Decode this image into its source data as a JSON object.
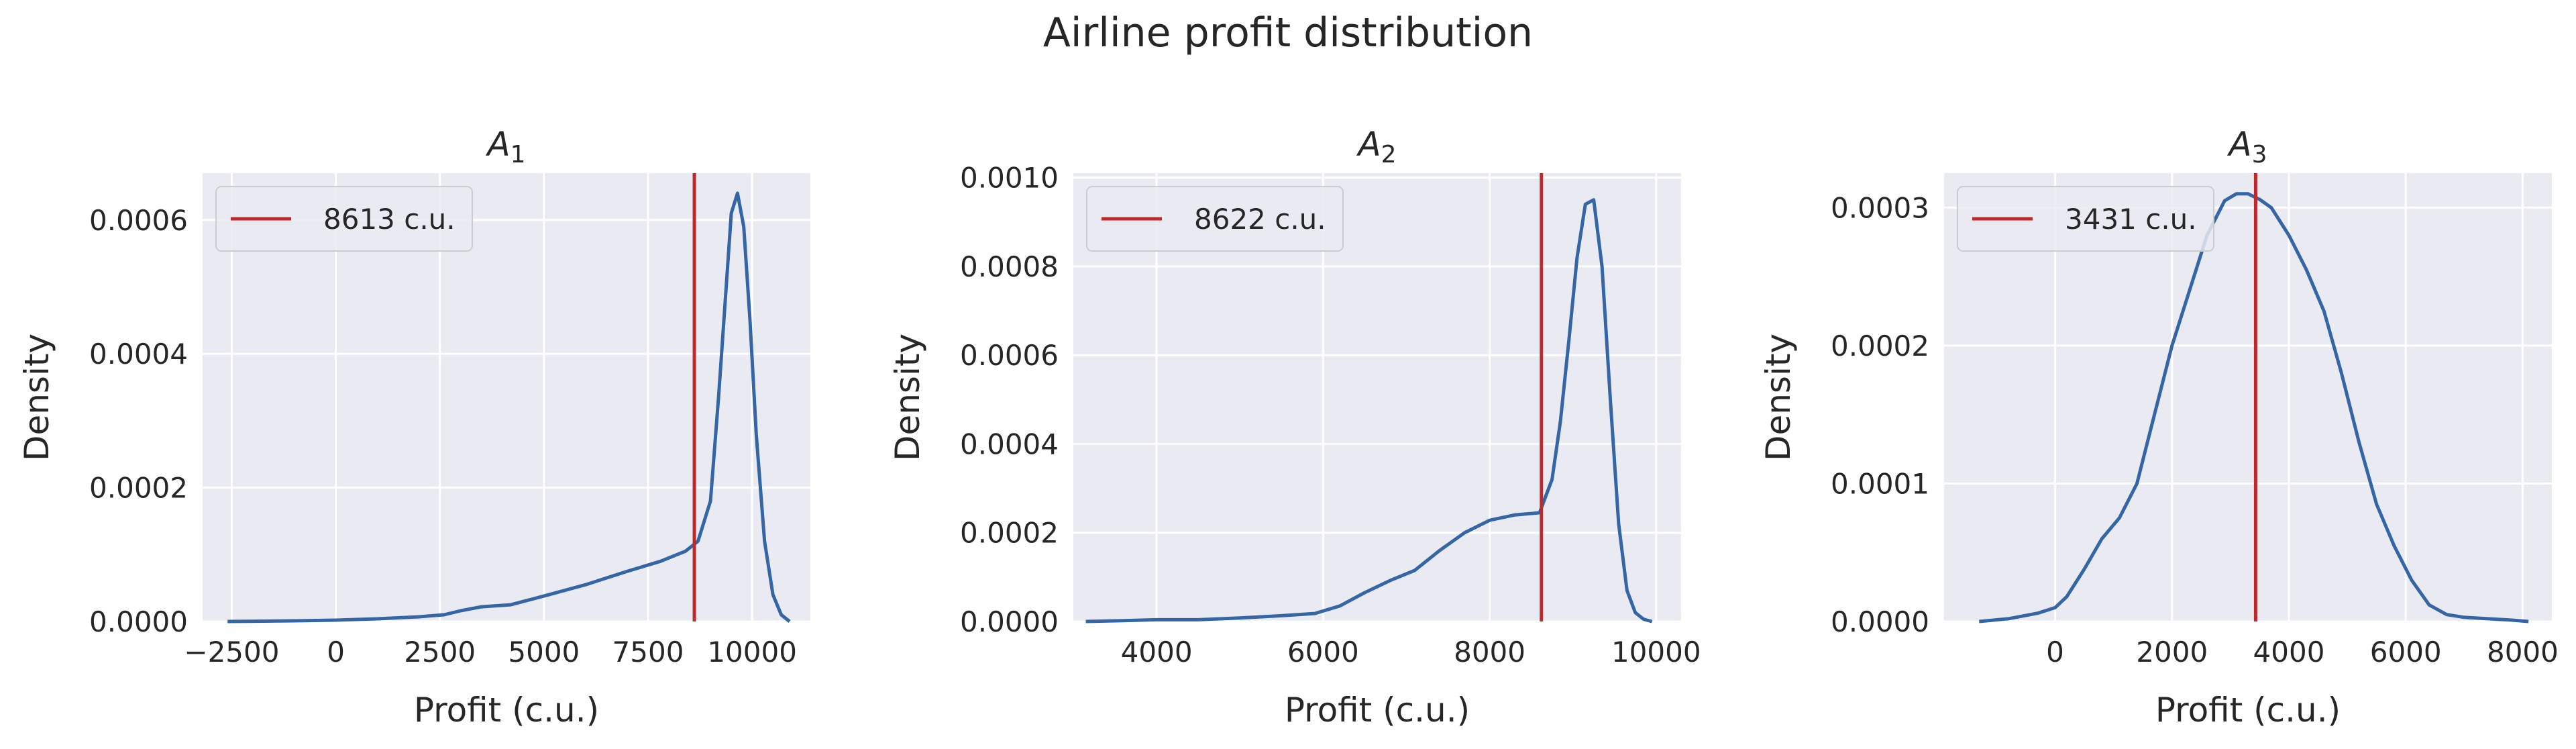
{
  "figure": {
    "title": "Airline profit distribution"
  },
  "colors": {
    "background": "#eaeaf2",
    "grid": "#ffffff",
    "kde_line": "#3465a4",
    "vline": "#c0282a"
  },
  "chart_data": [
    {
      "type": "line",
      "title": "A",
      "title_sub": "1",
      "xlabel": "Profit (c.u.)",
      "ylabel": "Density",
      "xlim": [
        -3200,
        11400
      ],
      "ylim": [
        0,
        0.00067
      ],
      "xticks": [
        -2500,
        0,
        2500,
        5000,
        7500,
        10000
      ],
      "xtick_labels": [
        "−2500",
        "0",
        "2500",
        "5000",
        "7500",
        "10000"
      ],
      "yticks": [
        0,
        0.0002,
        0.0004,
        0.0006
      ],
      "ytick_labels": [
        "0.0000",
        "0.0002",
        "0.0004",
        "0.0006"
      ],
      "grid": true,
      "legend_position": "top-left",
      "series": [
        {
          "x": [
            -2600,
            -1000,
            0,
            1000,
            2000,
            2600,
            3000,
            3500,
            4200,
            5000,
            6000,
            7000,
            7800,
            8400,
            8700,
            9000,
            9200,
            9400,
            9500,
            9650,
            9800,
            9950,
            10100,
            10300,
            10500,
            10700,
            10900
          ],
          "y": [
            0,
            1e-06,
            2e-06,
            4e-06,
            7e-06,
            1e-05,
            1.6e-05,
            2.2e-05,
            2.5e-05,
            3.8e-05,
            5.5e-05,
            7.5e-05,
            9e-05,
            0.000105,
            0.00012,
            0.00018,
            0.00034,
            0.00052,
            0.00061,
            0.00064,
            0.00059,
            0.00045,
            0.00028,
            0.00012,
            4e-05,
            1e-05,
            0
          ]
        }
      ],
      "vline": {
        "x": 8613,
        "label": "8613 c.u."
      }
    },
    {
      "type": "line",
      "title": "A",
      "title_sub": "2",
      "xlabel": "Profit (c.u.)",
      "ylabel": "Density",
      "xlim": [
        3000,
        10300
      ],
      "ylim": [
        0,
        0.00101
      ],
      "xticks": [
        4000,
        6000,
        8000,
        10000
      ],
      "xtick_labels": [
        "4000",
        "6000",
        "8000",
        "10000"
      ],
      "yticks": [
        0,
        0.0002,
        0.0004,
        0.0006,
        0.0008,
        0.001
      ],
      "ytick_labels": [
        "0.0000",
        "0.0002",
        "0.0004",
        "0.0006",
        "0.0008",
        "0.0010"
      ],
      "grid": true,
      "legend_position": "top-left",
      "series": [
        {
          "x": [
            3150,
            3600,
            4000,
            4500,
            5000,
            5500,
            5900,
            6200,
            6500,
            6800,
            7100,
            7400,
            7700,
            8000,
            8300,
            8600,
            8750,
            8850,
            8950,
            9050,
            9150,
            9250,
            9350,
            9450,
            9550,
            9650,
            9750,
            9850,
            9950
          ],
          "y": [
            0,
            2e-06,
            4e-06,
            4e-06,
            8e-06,
            1.3e-05,
            1.8e-05,
            3.5e-05,
            6.5e-05,
            9.2e-05,
            0.000115,
            0.00016,
            0.0002,
            0.000228,
            0.00024,
            0.000245,
            0.00032,
            0.00045,
            0.00063,
            0.00082,
            0.00094,
            0.00095,
            0.0008,
            0.0005,
            0.00022,
            7e-05,
            2e-05,
            5e-06,
            0
          ]
        }
      ],
      "vline": {
        "x": 8622,
        "label": "8622 c.u."
      }
    },
    {
      "type": "line",
      "title": "A",
      "title_sub": "3",
      "xlabel": "Profit (c.u.)",
      "ylabel": "Density",
      "xlim": [
        -1900,
        8500
      ],
      "ylim": [
        0,
        0.000325
      ],
      "xticks": [
        0,
        2000,
        4000,
        6000,
        8000
      ],
      "xtick_labels": [
        "0",
        "2000",
        "4000",
        "6000",
        "8000"
      ],
      "yticks": [
        0,
        0.0001,
        0.0002,
        0.0003
      ],
      "ytick_labels": [
        "0.0000",
        "0.0001",
        "0.0002",
        "0.0003"
      ],
      "grid": true,
      "legend_position": "top-left",
      "series": [
        {
          "x": [
            -1300,
            -800,
            -300,
            0,
            200,
            500,
            800,
            1100,
            1400,
            1700,
            2000,
            2300,
            2600,
            2900,
            3100,
            3300,
            3500,
            3700,
            4000,
            4300,
            4600,
            4900,
            5200,
            5500,
            5800,
            6100,
            6400,
            6700,
            7000,
            7400,
            7800,
            8100
          ],
          "y": [
            0,
            2e-06,
            6e-06,
            1e-05,
            1.8e-05,
            3.8e-05,
            6e-05,
            7.5e-05,
            0.0001,
            0.00015,
            0.0002,
            0.00024,
            0.00028,
            0.000305,
            0.00031,
            0.00031,
            0.000306,
            0.0003,
            0.00028,
            0.000255,
            0.000225,
            0.00018,
            0.00013,
            8.5e-05,
            5.5e-05,
            3e-05,
            1.2e-05,
            5e-06,
            3e-06,
            2e-06,
            1e-06,
            0
          ]
        }
      ],
      "vline": {
        "x": 3431,
        "label": "3431 c.u."
      }
    }
  ]
}
